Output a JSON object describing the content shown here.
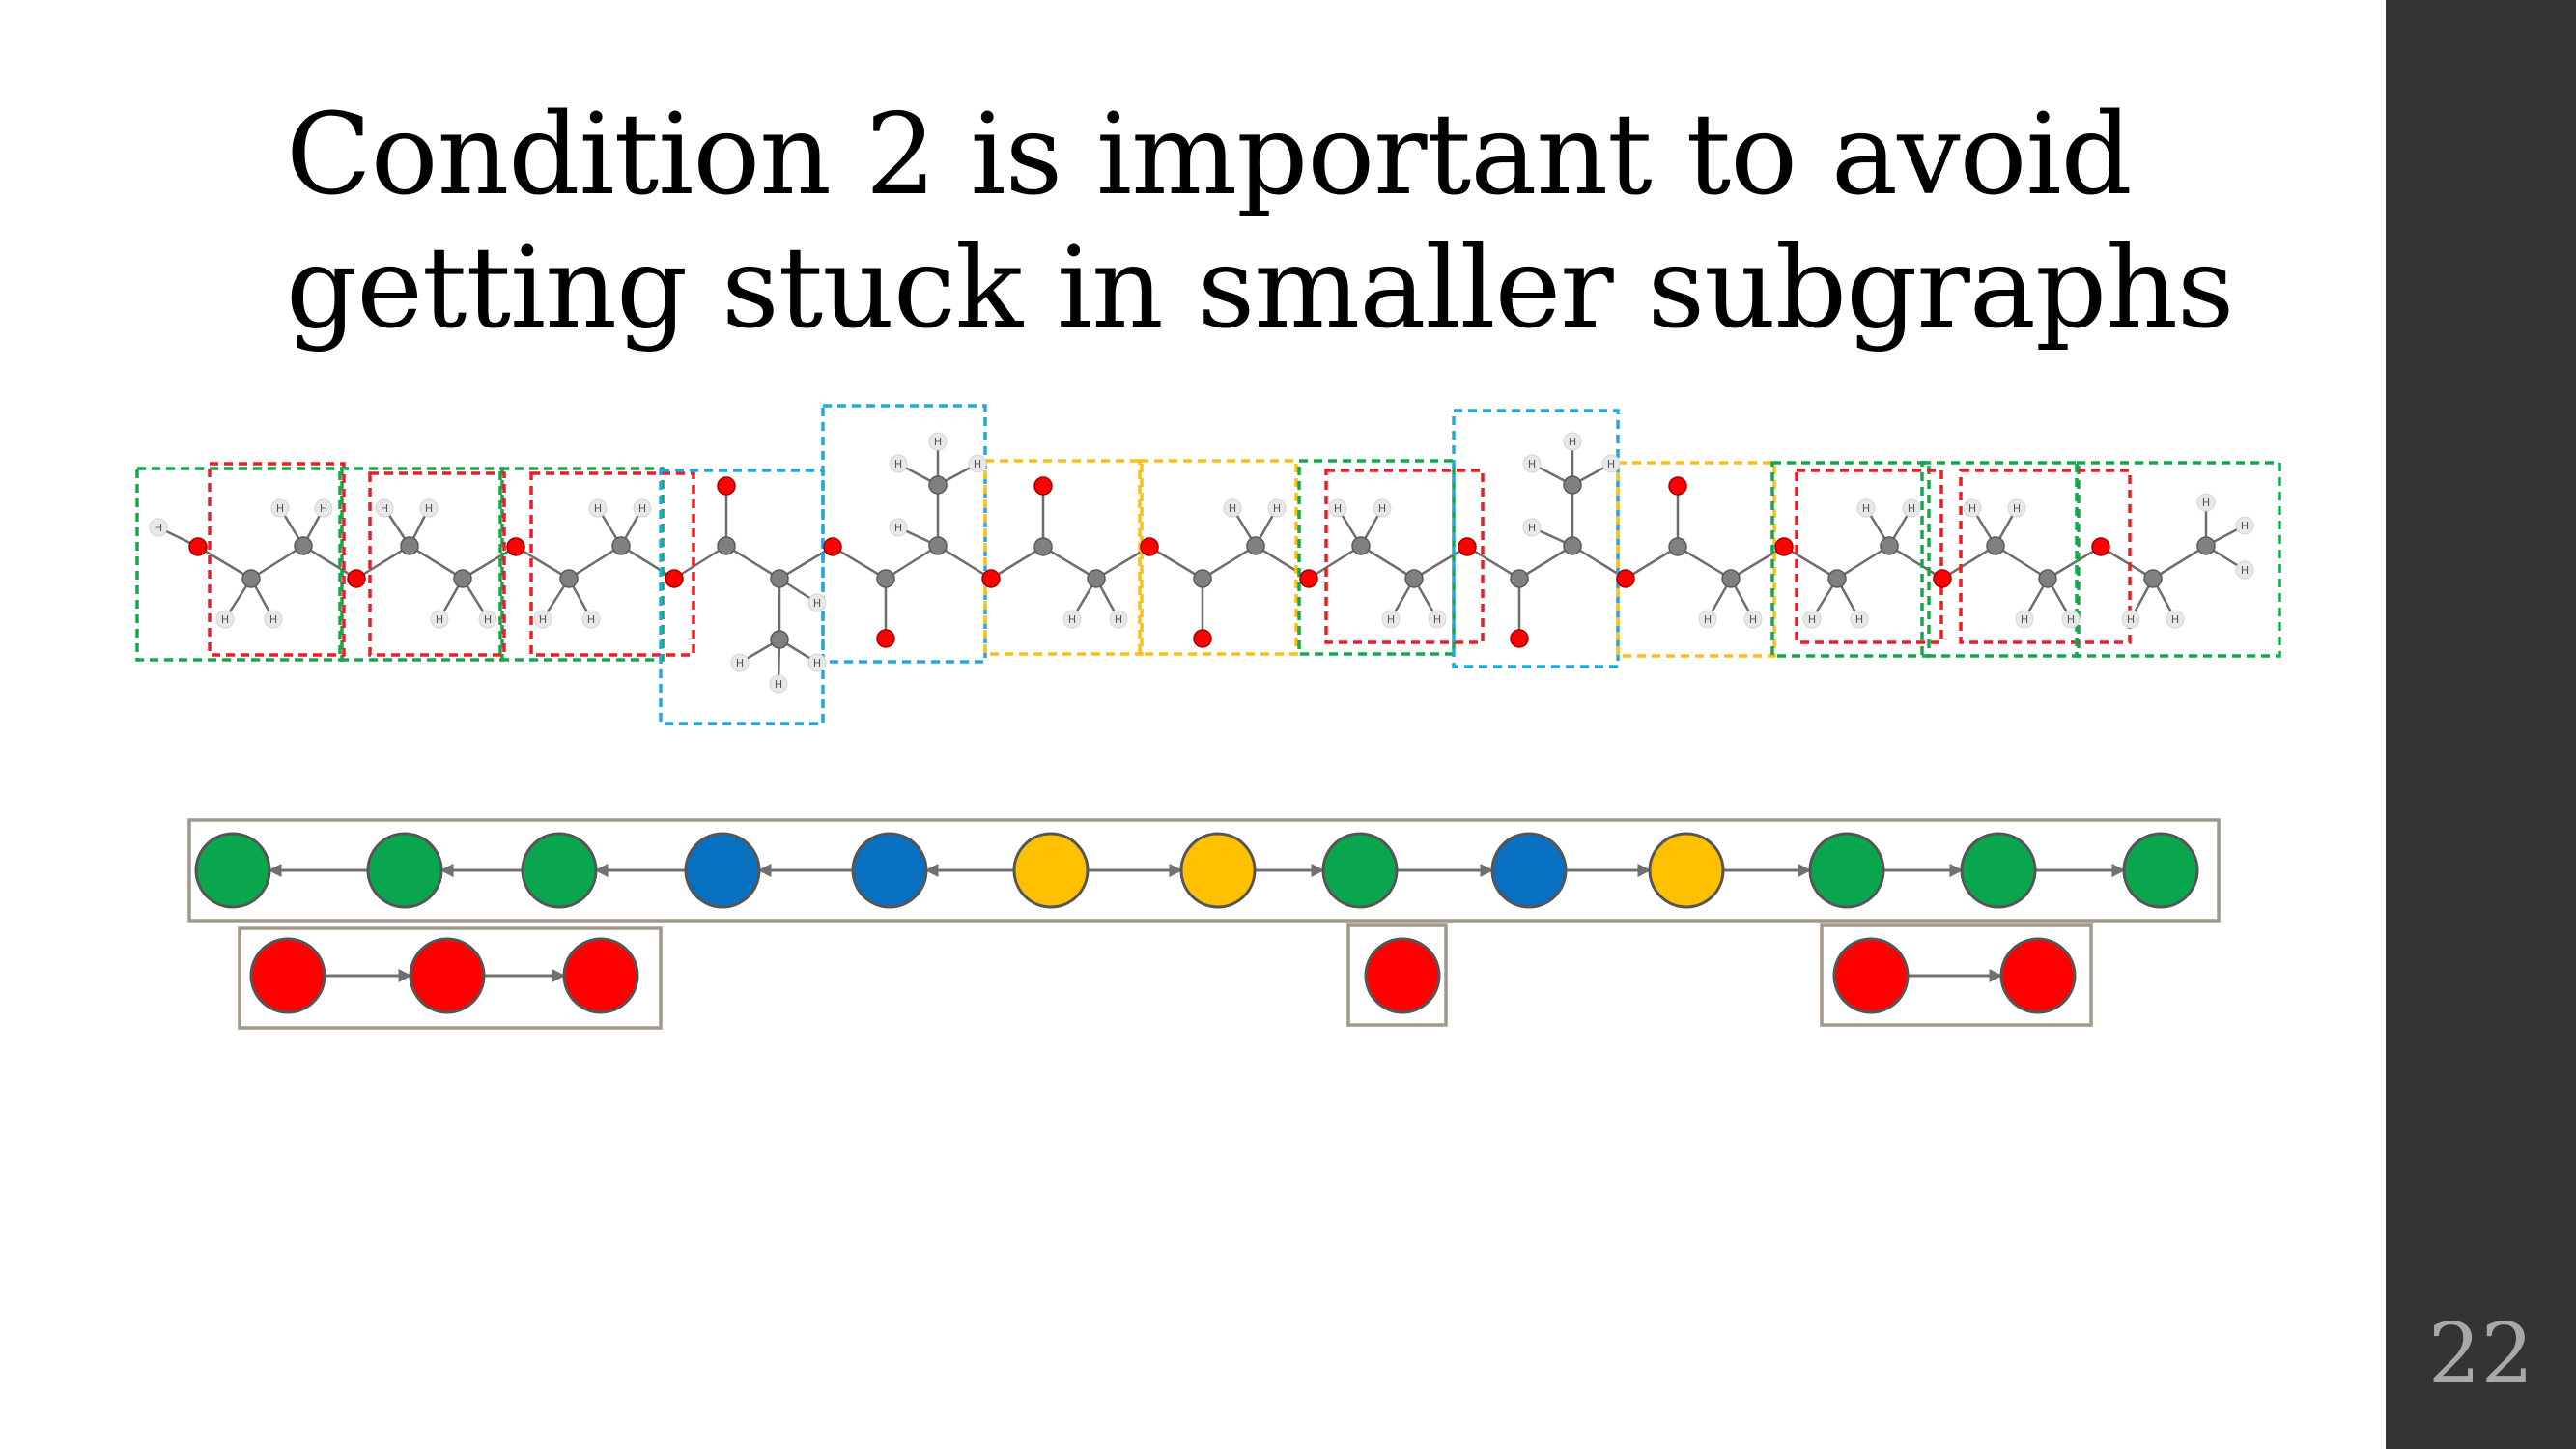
{
  "slide": {
    "title_line1": "Condition 2 is important to avoid",
    "title_line2": "getting stuck in smaller subgraphs",
    "page_number": "22"
  },
  "colors": {
    "green": "#0aa64e",
    "blue": "#0870c1",
    "yellow": "#ffc000",
    "red": "#ff0000",
    "carbon": "#808080",
    "oxygen": "#ff0000",
    "hydrogen": "#e8e8e8",
    "panel": "#343436",
    "box_border": "#a09888",
    "arrow": "#707070",
    "dash_green": "#14a84c",
    "dash_red": "#ee1c24",
    "dash_blue": "#22a8e0",
    "dash_yellow": "#ffbe14"
  },
  "molecule": {
    "hydrogen_label": "H"
  },
  "graph": {
    "main_chain": [
      "green",
      "green",
      "green",
      "blue",
      "blue",
      "yellow",
      "yellow",
      "green",
      "blue",
      "yellow",
      "green",
      "green",
      "green"
    ],
    "main_arrows": [
      "left",
      "left",
      "left",
      "left",
      "left",
      "right",
      "right",
      "right",
      "right",
      "right",
      "right",
      "right"
    ],
    "subchains": [
      [
        "red",
        "red",
        "red"
      ],
      [
        "red"
      ],
      [
        "red",
        "red"
      ]
    ]
  }
}
